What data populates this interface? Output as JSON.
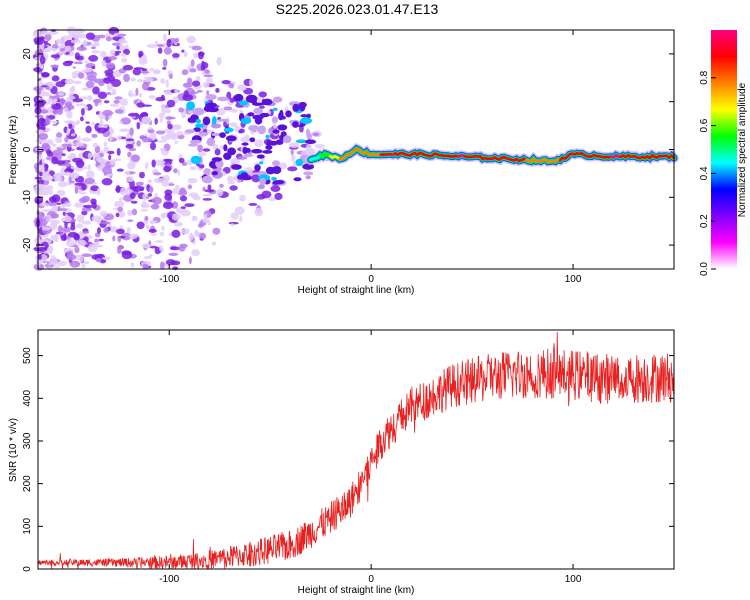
{
  "title": "S225.2026.023.01.47.E13",
  "chart_data": [
    {
      "type": "heatmap",
      "name": "spectrogram",
      "xlabel": "Height of straight line (km)",
      "ylabel": "Frequency (Hz)",
      "xlim": [
        -165,
        150
      ],
      "ylim": [
        -25,
        25
      ],
      "xticks": [
        -100,
        0,
        100
      ],
      "xtick_labels": [
        "-100",
        "0",
        "100"
      ],
      "yticks": [
        -20,
        -10,
        0,
        10,
        20
      ],
      "ytick_labels": [
        "-20",
        "-10",
        "0",
        "10",
        "20"
      ],
      "colorbar": {
        "label": "Normalized spectral amplitude",
        "range": [
          0,
          1
        ],
        "ticks": [
          0.0,
          0.2,
          0.4,
          0.6,
          0.8
        ],
        "tick_labels": [
          "0.0",
          "0.2",
          "0.4",
          "0.6",
          "0.8"
        ],
        "colors": [
          "#ffffff",
          "#ff00ff",
          "#8000ff",
          "#0000ff",
          "#00ffff",
          "#00ff00",
          "#ffff00",
          "#ff8000",
          "#ff0000",
          "#ff0080"
        ]
      },
      "ridge": {
        "x": [
          -30,
          -22,
          -15,
          -8,
          0,
          10,
          25,
          45,
          70,
          90,
          100,
          120,
          150
        ],
        "frequency": [
          -2,
          -1,
          -2,
          0,
          -1,
          -1,
          -1,
          -1.5,
          -2,
          -2.5,
          -1,
          -1.5,
          -1.5
        ],
        "amplitude": [
          0.4,
          0.6,
          0.75,
          0.8,
          0.75,
          0.95,
          0.9,
          0.95,
          0.85,
          0.8,
          0.9,
          0.95,
          0.9
        ]
      }
    },
    {
      "type": "line",
      "name": "snr",
      "xlabel": "Height of straight line (km)",
      "ylabel": "SNR (10 * v/v)",
      "xlim": [
        -165,
        150
      ],
      "ylim": [
        0,
        560
      ],
      "xticks": [
        -100,
        0,
        100
      ],
      "xtick_labels": [
        "-100",
        "0",
        "100"
      ],
      "yticks": [
        0,
        100,
        200,
        300,
        400,
        500
      ],
      "ytick_labels": [
        "0",
        "100",
        "200",
        "300",
        "400",
        "500"
      ],
      "color": "#e82020",
      "trend": {
        "x": [
          -165,
          -100,
          -80,
          -60,
          -40,
          -30,
          -20,
          -10,
          0,
          5,
          10,
          20,
          40,
          60,
          80,
          100,
          120,
          150
        ],
        "y": [
          15,
          15,
          22,
          35,
          55,
          85,
          120,
          160,
          250,
          300,
          330,
          380,
          430,
          450,
          460,
          455,
          445,
          450
        ]
      },
      "noise": [
        6,
        10,
        20,
        35,
        40,
        50,
        60,
        60,
        60
      ]
    }
  ]
}
